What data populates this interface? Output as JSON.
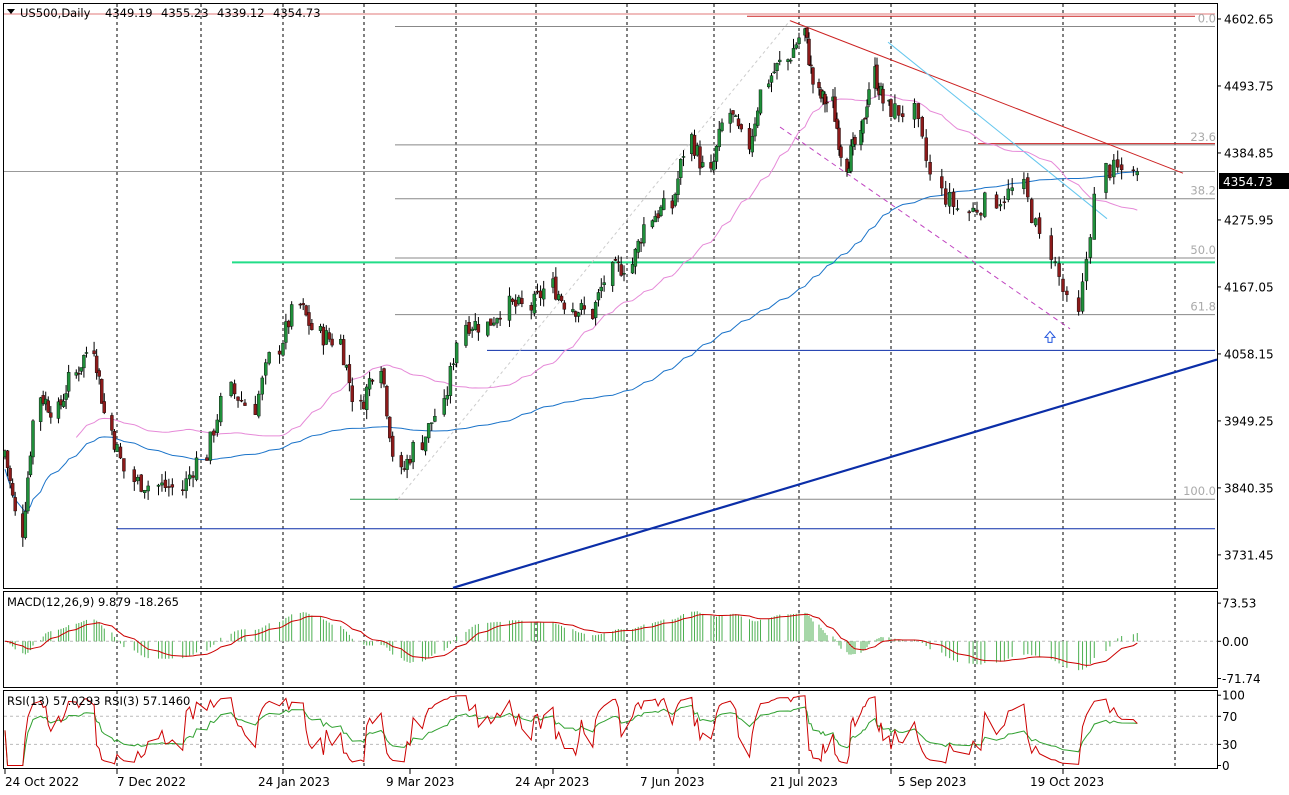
{
  "symbol_header": {
    "symbol": "US500,Daily",
    "ohlc": [
      "4349.19",
      "4355.23",
      "4339.12",
      "4354.73"
    ]
  },
  "current_price_label": "4354.73",
  "colors": {
    "bull": "#1f8f3a",
    "bear": "#8b1a1a",
    "ma_blue": "#1a73c9",
    "ma_pink": "#e68ad8",
    "resistance": "#cc2222",
    "support_green": "#22dd88",
    "trend_blue": "#0b2ea8",
    "cyan": "#66c7ee",
    "channel_violet": "#c044c0",
    "macd_hist": "#4caf50",
    "macd_signal": "#cc0000",
    "rsi13": "#cc0000",
    "rsi3": "#2fa02f"
  },
  "chart_data": [
    {
      "type": "candlestick",
      "title": "US500,Daily",
      "y_ticks": [
        "4602.65",
        "4493.75",
        "4384.85",
        "4275.95",
        "4167.05",
        "4058.15",
        "3949.25",
        "3840.35",
        "3731.45"
      ],
      "ylim": [
        3676,
        4627
      ],
      "x_ticks": [
        "24 Oct 2022",
        "7 Dec 2022",
        "24 Jan 2023",
        "9 Mar 2023",
        "24 Apr 2023",
        "7 Jun 2023",
        "21 Jul 2023",
        "5 Sep 2023",
        "19 Oct 2023"
      ],
      "grid": "dashed vertical",
      "close_series_weekly": [
        {
          "date": "2022-10-24",
          "close": 3901
        },
        {
          "date": "2022-10-31",
          "close": 3771
        },
        {
          "date": "2022-11-07",
          "close": 3992
        },
        {
          "date": "2022-11-14",
          "close": 3965
        },
        {
          "date": "2022-11-21",
          "close": 4026
        },
        {
          "date": "2022-11-28",
          "close": 4071
        },
        {
          "date": "2022-12-05",
          "close": 3934
        },
        {
          "date": "2022-12-12",
          "close": 3852
        },
        {
          "date": "2022-12-19",
          "close": 3844
        },
        {
          "date": "2022-12-26",
          "close": 3839
        },
        {
          "date": "2023-01-02",
          "close": 3895
        },
        {
          "date": "2023-01-09",
          "close": 3999
        },
        {
          "date": "2023-01-16",
          "close": 3972
        },
        {
          "date": "2023-01-23",
          "close": 4070
        },
        {
          "date": "2023-01-30",
          "close": 4136
        },
        {
          "date": "2023-02-06",
          "close": 4090
        },
        {
          "date": "2023-02-13",
          "close": 4079
        },
        {
          "date": "2023-02-20",
          "close": 3970
        },
        {
          "date": "2023-02-27",
          "close": 4045
        },
        {
          "date": "2023-03-06",
          "close": 3861
        },
        {
          "date": "2023-03-13",
          "close": 3916
        },
        {
          "date": "2023-03-20",
          "close": 3970
        },
        {
          "date": "2023-03-27",
          "close": 4109
        },
        {
          "date": "2023-04-03",
          "close": 4105
        },
        {
          "date": "2023-04-10",
          "close": 4137
        },
        {
          "date": "2023-04-17",
          "close": 4133
        },
        {
          "date": "2023-04-24",
          "close": 4169
        },
        {
          "date": "2023-05-01",
          "close": 4136
        },
        {
          "date": "2023-05-08",
          "close": 4124
        },
        {
          "date": "2023-05-15",
          "close": 4191
        },
        {
          "date": "2023-05-22",
          "close": 4205
        },
        {
          "date": "2023-05-29",
          "close": 4282
        },
        {
          "date": "2023-06-05",
          "close": 4298
        },
        {
          "date": "2023-06-12",
          "close": 4409
        },
        {
          "date": "2023-06-19",
          "close": 4348
        },
        {
          "date": "2023-06-26",
          "close": 4450
        },
        {
          "date": "2023-07-03",
          "close": 4398
        },
        {
          "date": "2023-07-10",
          "close": 4505
        },
        {
          "date": "2023-07-17",
          "close": 4536
        },
        {
          "date": "2023-07-24",
          "close": 4582
        },
        {
          "date": "2023-07-31",
          "close": 4478
        },
        {
          "date": "2023-08-07",
          "close": 4464
        },
        {
          "date": "2023-08-14",
          "close": 4369
        },
        {
          "date": "2023-08-21",
          "close": 4405
        },
        {
          "date": "2023-08-28",
          "close": 4515
        },
        {
          "date": "2023-09-04",
          "close": 4457
        },
        {
          "date": "2023-09-11",
          "close": 4450
        },
        {
          "date": "2023-09-18",
          "close": 4320
        },
        {
          "date": "2023-09-25",
          "close": 4288
        },
        {
          "date": "2023-10-02",
          "close": 4308
        },
        {
          "date": "2023-10-09",
          "close": 4327
        },
        {
          "date": "2023-10-16",
          "close": 4224
        },
        {
          "date": "2023-10-23",
          "close": 4117
        },
        {
          "date": "2023-10-30",
          "close": 4358
        },
        {
          "date": "2023-11-06",
          "close": 4355
        }
      ],
      "fibonacci": {
        "levels": [
          {
            "label": "0.0",
            "value": 4590.5
          },
          {
            "label": "23.6",
            "value": 4398.0
          },
          {
            "label": "38.2",
            "value": 4310.5
          },
          {
            "label": "50.0",
            "value": 4214.0
          },
          {
            "label": "61.8",
            "value": 4122.0
          },
          {
            "label": "100.0",
            "value": 3822.0
          }
        ]
      },
      "horizontal_lines": [
        {
          "name": "green support",
          "value": 4207
        },
        {
          "name": "support",
          "value": 4064
        },
        {
          "name": "support",
          "value": 3774
        },
        {
          "name": "resistance top",
          "value": 4607
        },
        {
          "name": "resistance",
          "value": 4400
        }
      ]
    },
    {
      "type": "line",
      "title": "MACD(12,26,9) 9.879 -18.265",
      "y_ticks": [
        "73.53",
        "0.00",
        "-71.74"
      ],
      "ylim": [
        -90,
        95
      ]
    },
    {
      "type": "line",
      "title": "RSI(13) 57.0293  RSI(3) 57.1460",
      "y_ticks": [
        "100",
        "70",
        "30",
        "0"
      ],
      "ylim": [
        -5,
        106
      ]
    }
  ]
}
